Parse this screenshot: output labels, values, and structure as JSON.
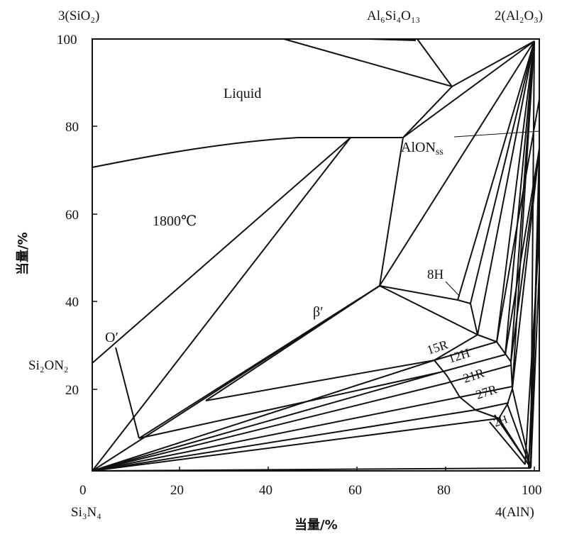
{
  "corners": {
    "top_left": "3(SiO₂)",
    "top_mid": "Al₆Si₄O₁₃",
    "top_right": "2(Al₂O₃)",
    "bottom_left": "Si₃N₄",
    "bottom_right": "4(AlN)",
    "left_mid": "Si₂ON₂"
  },
  "axes": {
    "x_label": "当量/%",
    "y_label": "当量/%",
    "x_ticks": [
      "0",
      "20",
      "40",
      "60",
      "80",
      "100"
    ],
    "y_ticks": [
      "20",
      "40",
      "60",
      "80",
      "100"
    ]
  },
  "regions": {
    "liquid": "Liquid",
    "temperature": "1800℃",
    "alon": "AlON",
    "alon_sub": "ss",
    "beta": "β′",
    "o_prime": "O′",
    "h8": "8H",
    "r15": "15R",
    "h12": "12H",
    "r21": "21R",
    "r27": "27R",
    "h2": "2H"
  }
}
